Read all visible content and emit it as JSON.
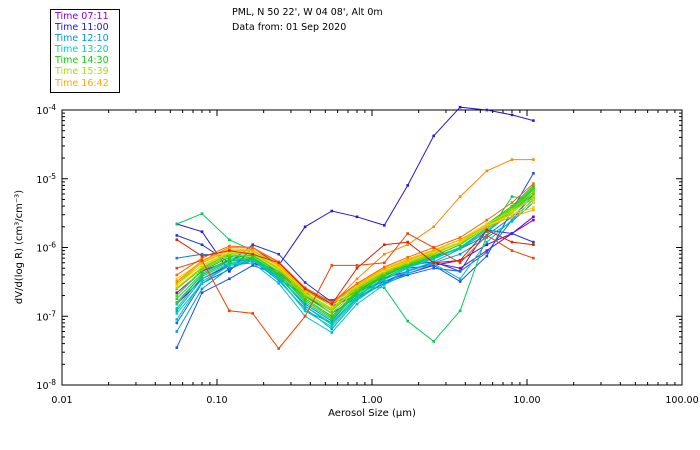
{
  "header": {
    "station": "PML, N 50 22', W 04 08', Alt 0m",
    "date": "Data from: 01 Sep 2020"
  },
  "legend": [
    {
      "label": "Time 07:11",
      "color": "#8800cc"
    },
    {
      "label": "Time 11:00",
      "color": "#1a1acc"
    },
    {
      "label": "Time 12:10",
      "color": "#0099dd"
    },
    {
      "label": "Time 13:20",
      "color": "#00cccc"
    },
    {
      "label": "Time 14:30",
      "color": "#11cc11"
    },
    {
      "label": "Time 15:39",
      "color": "#aadd00"
    },
    {
      "label": "Time 16:42",
      "color": "#ffaa00"
    }
  ],
  "chart_data": {
    "type": "line",
    "xscale": "log",
    "yscale": "log",
    "xlim": [
      0.01,
      100
    ],
    "ylim": [
      1e-08,
      0.0001
    ],
    "xlabel": "Aerosol Size (μm)",
    "ylabel": "dV/d(log R) (cm³/cm⁻³)",
    "x_ticks": [
      {
        "v": 0.01,
        "label": "0.01"
      },
      {
        "v": 0.1,
        "label": "0.10"
      },
      {
        "v": 1,
        "label": "1.00"
      },
      {
        "v": 10,
        "label": "10.00"
      },
      {
        "v": 100,
        "label": "100.00"
      }
    ],
    "y_ticks": [
      {
        "v": 1e-08,
        "base": "10",
        "exp": "-8"
      },
      {
        "v": 1e-07,
        "base": "10",
        "exp": "-7"
      },
      {
        "v": 1e-06,
        "base": "10",
        "exp": "-6"
      },
      {
        "v": 1e-05,
        "base": "10",
        "exp": "-5"
      },
      {
        "v": 0.0001,
        "base": "10",
        "exp": "-4"
      }
    ],
    "x": [
      0.055,
      0.08,
      0.12,
      0.17,
      0.25,
      0.37,
      0.55,
      0.8,
      1.2,
      1.7,
      2.5,
      3.7,
      5.5,
      8.0,
      11.0
    ],
    "series": [
      {
        "color": "#8800cc",
        "values": [
          2.2e-07,
          4.5e-07,
          6.5e-07,
          6.5e-07,
          4.5e-07,
          2.2e-07,
          1.7e-07,
          2.5e-07,
          3.6e-07,
          4.5e-07,
          6e-07,
          5e-07,
          9e-07,
          1.6e-06,
          2.5e-06
        ]
      },
      {
        "color": "#6a00d6",
        "values": [
          1.5e-07,
          3.5e-07,
          5.5e-07,
          6e-07,
          4.2e-07,
          2.4e-07,
          1.5e-07,
          2.3e-07,
          3.2e-07,
          4.2e-07,
          5.5e-07,
          6.5e-07,
          1.1e-06,
          1.6e-06,
          2.8e-06
        ]
      },
      {
        "color": "#2b18d0",
        "values": [
          2.2e-06,
          1.7e-06,
          4.5e-07,
          1e-06,
          5.5e-07,
          2e-06,
          3.4e-06,
          2.8e-06,
          2.1e-06,
          8e-06,
          4.2e-05,
          0.00011,
          0.0001,
          8.5e-05,
          7e-05
        ]
      },
      {
        "color": "#1e3ad6",
        "values": [
          1.5e-06,
          1.1e-06,
          6e-07,
          1.1e-06,
          8e-07,
          3.1e-07,
          1.6e-07,
          2.8e-07,
          4.5e-07,
          5.5e-07,
          6.2e-07,
          4.5e-07,
          1.8e-06,
          1.6e-06,
          1.2e-06
        ]
      },
      {
        "color": "#1a50dd",
        "values": [
          3.5e-08,
          2.2e-07,
          3.5e-07,
          5.5e-07,
          4e-07,
          2.4e-07,
          1.4e-07,
          2e-07,
          3.4e-07,
          5e-07,
          5.5e-07,
          3.2e-07,
          7.5e-07,
          3.5e-06,
          1.2e-05
        ]
      },
      {
        "color": "#1066dd",
        "values": [
          8e-08,
          3e-07,
          4.8e-07,
          7e-07,
          3.5e-07,
          2e-07,
          1.1e-07,
          1.9e-07,
          3e-07,
          4e-07,
          5e-07,
          4.5e-07,
          8.5e-07,
          2.5e-06,
          6e-06
        ]
      },
      {
        "color": "#0a84dd",
        "values": [
          7e-07,
          8e-07,
          7.5e-07,
          6.5e-07,
          3.8e-07,
          1.5e-07,
          8.5e-08,
          2.2e-07,
          4.2e-07,
          5.5e-07,
          7.5e-07,
          9.5e-07,
          1.5e-06,
          2.8e-06,
          5.5e-06
        ]
      },
      {
        "color": "#0099dd",
        "values": [
          6e-08,
          2.5e-07,
          5e-07,
          6.5e-07,
          3.5e-07,
          1.2e-07,
          8e-08,
          1.8e-07,
          3e-07,
          4.5e-07,
          6e-07,
          8e-07,
          1.4e-06,
          2.4e-06,
          4.5e-06
        ]
      },
      {
        "color": "#00aadd",
        "values": [
          1.2e-07,
          3.5e-07,
          5.8e-07,
          6.5e-07,
          3.3e-07,
          1.3e-07,
          6.5e-08,
          1.7e-07,
          3.2e-07,
          4.6e-07,
          6.2e-07,
          9.5e-07,
          1.7e-06,
          3.2e-06,
          6.5e-06
        ]
      },
      {
        "color": "#00bbd8",
        "values": [
          9e-08,
          3.2e-07,
          5.5e-07,
          6e-07,
          3e-07,
          1e-07,
          5.8e-08,
          1.5e-07,
          2.9e-07,
          4.2e-07,
          5.8e-07,
          3.5e-07,
          1.2e-06,
          2.5e-06,
          5e-06
        ]
      },
      {
        "color": "#00c5cc",
        "values": [
          1.5e-07,
          4e-07,
          6.3e-07,
          7e-07,
          4e-07,
          1.4e-07,
          7.5e-08,
          1.9e-07,
          3.6e-07,
          5.2e-07,
          7e-07,
          1e-06,
          1.9e-06,
          3.6e-06,
          7e-06
        ]
      },
      {
        "color": "#00ccbb",
        "values": [
          1.1e-07,
          3e-07,
          5.5e-07,
          6.6e-07,
          3.6e-07,
          1.2e-07,
          7e-08,
          1.8e-07,
          3.4e-07,
          5e-07,
          6.8e-07,
          9.8e-07,
          1.8e-06,
          3.2e-06,
          6e-06
        ]
      },
      {
        "color": "#00cc99",
        "values": [
          1.8e-07,
          4.2e-07,
          6.8e-07,
          7.2e-07,
          4.2e-07,
          1.6e-07,
          9e-08,
          2.1e-07,
          3.8e-07,
          5.5e-07,
          7.5e-07,
          1.1e-06,
          2e-06,
          3.8e-06,
          7.5e-06
        ]
      },
      {
        "color": "#00cc77",
        "values": [
          1.3e-07,
          3.8e-07,
          6e-07,
          6.8e-07,
          3.8e-07,
          1.4e-07,
          8e-08,
          2e-07,
          3.6e-07,
          5.3e-07,
          7.2e-07,
          1e-06,
          1.9e-06,
          3.4e-06,
          6.5e-06
        ]
      },
      {
        "color": "#00cc55",
        "values": [
          2.2e-06,
          3.1e-06,
          1.3e-06,
          9e-07,
          5.5e-07,
          2.3e-07,
          1.6e-07,
          2.6e-07,
          2.6e-07,
          8.5e-08,
          4.3e-08,
          1.2e-07,
          1.5e-06,
          5.5e-06,
          5e-06
        ]
      },
      {
        "color": "#11cc11",
        "values": [
          2e-07,
          4.6e-07,
          7.2e-07,
          7.6e-07,
          4.4e-07,
          1.8e-07,
          1e-07,
          2.3e-07,
          4e-07,
          5.8e-07,
          8e-07,
          1.2e-06,
          2.2e-06,
          4e-06,
          8e-06
        ]
      },
      {
        "color": "#33cc00",
        "values": [
          1.6e-07,
          4e-07,
          6.5e-07,
          7e-07,
          4.1e-07,
          1.7e-07,
          9.5e-08,
          2.2e-07,
          3.9e-07,
          5.6e-07,
          7.6e-07,
          1.1e-06,
          2e-06,
          3.6e-06,
          7e-06
        ]
      },
      {
        "color": "#55cc00",
        "values": [
          2.5e-07,
          5e-07,
          8e-07,
          8.2e-07,
          4.8e-07,
          2e-07,
          1.2e-07,
          2.5e-07,
          4.3e-07,
          6e-07,
          8.4e-07,
          1.2e-06,
          2.1e-06,
          3.8e-06,
          7.2e-06
        ]
      },
      {
        "color": "#77cc00",
        "values": [
          2e-07,
          4.8e-07,
          7.6e-07,
          7.8e-07,
          4.5e-07,
          1.9e-07,
          1.1e-07,
          2.4e-07,
          4.1e-07,
          5.8e-07,
          8e-07,
          1.2e-06,
          2e-06,
          3.4e-06,
          6e-06
        ]
      },
      {
        "color": "#99d400",
        "values": [
          3e-07,
          5.5e-07,
          8.5e-07,
          8.5e-07,
          5e-07,
          2.2e-07,
          1.3e-07,
          2.7e-07,
          4.5e-07,
          6.2e-07,
          8.6e-07,
          1.2e-06,
          2.2e-06,
          3.6e-06,
          6.5e-06
        ]
      },
      {
        "color": "#aadd00",
        "values": [
          2.6e-07,
          5.2e-07,
          8.2e-07,
          8.2e-07,
          4.8e-07,
          2.1e-07,
          1.25e-07,
          2.6e-07,
          4.4e-07,
          6e-07,
          8.2e-07,
          1.15e-06,
          2e-06,
          3.2e-06,
          5.5e-06
        ]
      },
      {
        "color": "#ccdd00",
        "values": [
          3.2e-07,
          6e-07,
          9e-07,
          9e-07,
          5.5e-07,
          2.4e-07,
          1.5e-07,
          2.9e-07,
          4.8e-07,
          6.6e-07,
          9e-07,
          1.3e-06,
          2.2e-06,
          3.4e-06,
          5e-06
        ]
      },
      {
        "color": "#eedd00",
        "values": [
          2.8e-07,
          5.6e-07,
          8.6e-07,
          8.6e-07,
          5.2e-07,
          2.3e-07,
          1.4e-07,
          2.8e-07,
          4.6e-07,
          6.3e-07,
          8.6e-07,
          1.2e-06,
          2e-06,
          3e-06,
          4.5e-06
        ]
      },
      {
        "color": "#ffcc00",
        "values": [
          3.5e-07,
          6.2e-07,
          9.5e-07,
          9.2e-07,
          5.6e-07,
          2.5e-07,
          1.6e-07,
          3e-07,
          5e-07,
          6.8e-07,
          9.2e-07,
          1.3e-06,
          2.1e-06,
          3e-06,
          3.8e-06
        ]
      },
      {
        "color": "#ffaa00",
        "values": [
          3e-07,
          6e-07,
          9e-07,
          9e-07,
          5.5e-07,
          2.4e-07,
          1.5e-07,
          2.9e-07,
          4.8e-07,
          6.5e-07,
          9e-07,
          1.3e-06,
          2e-06,
          2.8e-06,
          3.5e-06
        ]
      },
      {
        "color": "#ff8800",
        "values": [
          3.2e-07,
          6.4e-07,
          1e-06,
          9.8e-07,
          6e-07,
          2.5e-07,
          1.5e-07,
          3.5e-07,
          8e-07,
          1.1e-06,
          2e-06,
          5.5e-06,
          1.3e-05,
          1.9e-05,
          1.9e-05
        ]
      },
      {
        "color": "#ff6600",
        "values": [
          4e-07,
          7e-07,
          1.05e-06,
          1e-06,
          6.2e-07,
          2.6e-07,
          1.6e-07,
          3e-07,
          5.2e-07,
          7.2e-07,
          1e-06,
          1.4e-06,
          2.5e-06,
          4.5e-06,
          8.5e-06
        ]
      },
      {
        "color": "#ee4400",
        "values": [
          5e-07,
          6.5e-07,
          1.2e-07,
          1.1e-07,
          3.4e-08,
          1e-07,
          5.5e-07,
          5.5e-07,
          6e-07,
          1.6e-06,
          1e-06,
          6e-07,
          1.5e-06,
          9e-07,
          7e-07
        ]
      },
      {
        "color": "#dd2200",
        "values": [
          1.3e-06,
          7.5e-07,
          9e-07,
          8e-07,
          6e-07,
          2.5e-07,
          1.5e-07,
          5e-07,
          1.1e-06,
          1.2e-06,
          6e-07,
          6.5e-07,
          1.8e-06,
          1.2e-06,
          1.1e-06
        ]
      }
    ]
  }
}
